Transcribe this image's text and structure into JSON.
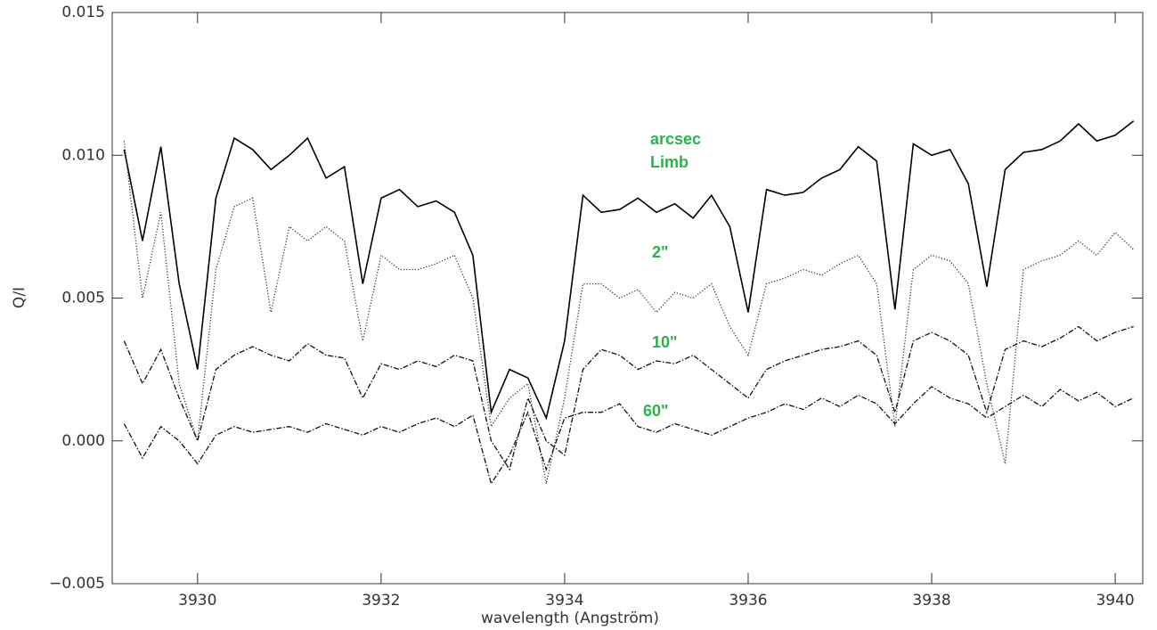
{
  "chart_data": {
    "type": "line",
    "x_label": "wavelength (Angström)",
    "y_label": "Q/I",
    "annotations": [
      "arcsec"
    ],
    "xlim": [
      3929.07,
      3940.3
    ],
    "xticks": [
      3930,
      3932,
      3934,
      3936,
      3938,
      3940
    ],
    "ylim": [
      -0.005,
      0.015
    ],
    "yticks": [
      {
        "value": -0.005,
        "label": "−0.005"
      },
      {
        "value": 0,
        "label": "0.000"
      },
      0.005,
      {
        "value": 0.01,
        "label": "0.010"
      },
      0.015
    ],
    "x": [
      3929.2,
      3929.4,
      3929.6,
      3929.8,
      3930,
      3930.2,
      3930.4,
      3930.6,
      3930.8,
      3931,
      3931.2,
      3931.4,
      3931.6,
      3931.8,
      3932,
      3932.2,
      3932.4,
      3932.6,
      3932.8,
      3933,
      3933.2,
      3933.4,
      3933.6,
      3933.8,
      3934,
      3934.2,
      3934.4,
      3934.6,
      3934.8,
      3935,
      3935.2,
      3935.4,
      3935.6,
      3935.8,
      3936,
      3936.2,
      3936.4,
      3936.6,
      3936.8,
      3937,
      3937.2,
      3937.4,
      3937.6,
      3937.8,
      3938,
      3938.2,
      3938.4,
      3938.6,
      3938.8,
      3939,
      3939.2,
      3939.4,
      3939.6,
      3939.8,
      3940,
      3940.2
    ],
    "series": [
      {
        "name": "Limb",
        "color": "#000000",
        "dash": "solid",
        "values": [
          0.0102,
          0.007,
          0.0103,
          0.0055,
          0.0025,
          0.0085,
          0.0106,
          0.0102,
          0.0095,
          0.01,
          0.0106,
          0.0092,
          0.0096,
          0.0055,
          0.0085,
          0.0088,
          0.0082,
          0.0084,
          0.008,
          0.0065,
          0.001,
          0.0025,
          0.0022,
          0.0008,
          0.0035,
          0.0086,
          0.008,
          0.0081,
          0.0085,
          0.008,
          0.0083,
          0.0078,
          0.0086,
          0.0075,
          0.0045,
          0.0088,
          0.0086,
          0.0087,
          0.0092,
          0.0095,
          0.0103,
          0.0098,
          0.0046,
          0.0104,
          0.01,
          0.0102,
          0.009,
          0.0054,
          0.0095,
          0.0101,
          0.0102,
          0.0105,
          0.0111,
          0.0105,
          0.0107,
          0.0112
        ]
      },
      {
        "name": "2\"",
        "color": "#333333",
        "dash": "dotted",
        "values": [
          0.0105,
          0.005,
          0.008,
          0.002,
          0.0,
          0.006,
          0.0082,
          0.0085,
          0.0045,
          0.0075,
          0.007,
          0.0075,
          0.007,
          0.0035,
          0.0065,
          0.006,
          0.006,
          0.0062,
          0.0065,
          0.005,
          0.0005,
          0.0015,
          0.002,
          -0.0015,
          0.0015,
          0.0055,
          0.0055,
          0.005,
          0.0053,
          0.0045,
          0.0052,
          0.005,
          0.0055,
          0.004,
          0.003,
          0.0055,
          0.0057,
          0.006,
          0.0058,
          0.0062,
          0.0065,
          0.0055,
          0.0005,
          0.006,
          0.0065,
          0.0063,
          0.0055,
          0.002,
          -0.0008,
          0.006,
          0.0063,
          0.0065,
          0.007,
          0.0065,
          0.0073,
          0.0067
        ]
      },
      {
        "name": "10\"",
        "color": "#111111",
        "dash": "dashdot",
        "values": [
          0.0035,
          0.002,
          0.0032,
          0.0015,
          0.0,
          0.0025,
          0.003,
          0.0033,
          0.003,
          0.0028,
          0.0034,
          0.003,
          0.0029,
          0.0015,
          0.0027,
          0.0025,
          0.0028,
          0.0026,
          0.003,
          0.0028,
          0.0,
          -0.001,
          0.0015,
          0.0,
          -0.0005,
          0.0025,
          0.0032,
          0.003,
          0.0025,
          0.0028,
          0.0027,
          0.003,
          0.0025,
          0.002,
          0.0015,
          0.0025,
          0.0028,
          0.003,
          0.0032,
          0.0033,
          0.0035,
          0.003,
          0.001,
          0.0035,
          0.0038,
          0.0035,
          0.003,
          0.001,
          0.0032,
          0.0035,
          0.0033,
          0.0036,
          0.004,
          0.0035,
          0.0038,
          0.004
        ]
      },
      {
        "name": "60\"",
        "color": "#111111",
        "dash": "dashdot",
        "values": [
          0.0006,
          -0.0006,
          0.0005,
          0.0,
          -0.0008,
          0.0002,
          0.0005,
          0.0003,
          0.0004,
          0.0005,
          0.0003,
          0.0006,
          0.0004,
          0.0002,
          0.0005,
          0.0003,
          0.0006,
          0.0008,
          0.0005,
          0.0009,
          -0.0015,
          -0.0005,
          0.001,
          -0.001,
          0.0008,
          0.001,
          0.001,
          0.0013,
          0.0005,
          0.0003,
          0.0006,
          0.0004,
          0.0002,
          0.0005,
          0.0008,
          0.001,
          0.0013,
          0.0011,
          0.0015,
          0.0012,
          0.0016,
          0.0013,
          0.0006,
          0.0013,
          0.0019,
          0.0015,
          0.0013,
          0.0008,
          0.0012,
          0.0016,
          0.0012,
          0.0018,
          0.0014,
          0.0017,
          0.0012,
          0.0015
        ]
      }
    ]
  }
}
